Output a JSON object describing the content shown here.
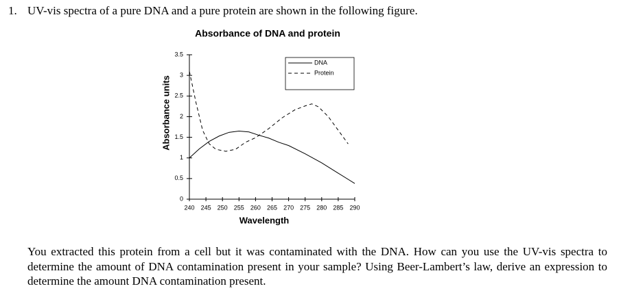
{
  "question": {
    "number": "1.",
    "text": "UV-vis spectra of a pure DNA and a pure protein are shown in the following figure."
  },
  "chart_data": {
    "type": "line",
    "title": "Absorbance of DNA and protein",
    "xlabel": "Wavelength",
    "ylabel": "Absorbance units",
    "xlim": [
      240,
      290
    ],
    "xticks": [
      240,
      245,
      250,
      255,
      260,
      265,
      270,
      275,
      280,
      285,
      290
    ],
    "ylim": [
      0,
      3.5
    ],
    "yticks": [
      0,
      0.5,
      1,
      1.5,
      2,
      2.5,
      3,
      3.5
    ],
    "legend": "upper right",
    "series": [
      {
        "name": "DNA",
        "color": "#000000",
        "linestyle": "solid",
        "x": [
          240,
          243,
          246,
          249,
          252,
          255,
          258,
          261,
          264,
          267,
          270,
          275,
          280,
          285,
          290
        ],
        "values": [
          1.0,
          1.22,
          1.4,
          1.53,
          1.62,
          1.65,
          1.63,
          1.55,
          1.48,
          1.38,
          1.3,
          1.1,
          0.88,
          0.63,
          0.38
        ]
      },
      {
        "name": "Protein",
        "color": "#000000",
        "linestyle": "dashed",
        "x": [
          240,
          242,
          244,
          246,
          248,
          251,
          254,
          257,
          260,
          264,
          268,
          272,
          275,
          277,
          279,
          282,
          285,
          288
        ],
        "values": [
          3.1,
          2.34,
          1.67,
          1.34,
          1.21,
          1.16,
          1.21,
          1.38,
          1.49,
          1.71,
          1.97,
          2.17,
          2.26,
          2.31,
          2.24,
          2.0,
          1.67,
          1.34
        ]
      }
    ]
  },
  "paragraph": "You extracted this protein from a cell but it was contaminated with the DNA. How can you use the UV-vis spectra to determine the amount of DNA contamination present in your sample? Using Beer-Lambert’s law, derive an expression to determine the amount DNA contamination present."
}
